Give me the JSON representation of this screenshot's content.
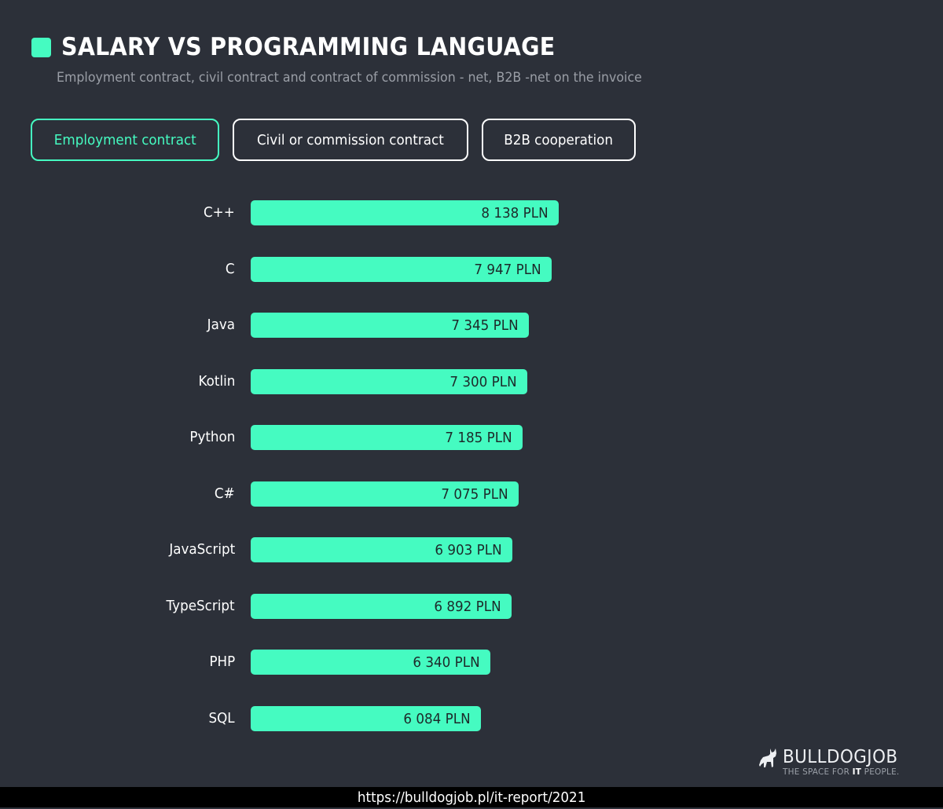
{
  "header": {
    "title": "SALARY VS PROGRAMMING LANGUAGE",
    "subtitle": "Employment contract, civil contract and contract of commission - net, B2B -net on the invoice",
    "accent_color": "#45fbc1"
  },
  "tabs": [
    {
      "label": "Employment contract",
      "active": true
    },
    {
      "label": "Civil or commission contract",
      "active": false
    },
    {
      "label": "B2B cooperation",
      "active": false
    }
  ],
  "chart_data": {
    "type": "bar",
    "orientation": "horizontal",
    "title": "SALARY VS PROGRAMMING LANGUAGE",
    "subtitle": "Employment contract, civil contract and contract of commission - net, B2B -net on the invoice",
    "xlabel": "",
    "ylabel": "",
    "unit": "PLN",
    "grid": false,
    "legend": null,
    "bar_color": "#45fbc1",
    "categories": [
      "C++",
      "C",
      "Java",
      "Kotlin",
      "Python",
      "C#",
      "JavaScript",
      "TypeScript",
      "PHP",
      "SQL"
    ],
    "values": [
      8138,
      7947,
      7345,
      7300,
      7185,
      7075,
      6903,
      6892,
      6340,
      6084
    ],
    "value_labels": [
      "8 138 PLN",
      "7 947 PLN",
      "7 345 PLN",
      "7 300 PLN",
      "7 185 PLN",
      "7 075 PLN",
      "6 903 PLN",
      "6 892 PLN",
      "6 340 PLN",
      "6 084 PLN"
    ]
  },
  "logo": {
    "name": "BULLDOGJOB",
    "tagline_pre": "THE SPACE FOR ",
    "tagline_bold": "IT",
    "tagline_post": " PEOPLE."
  },
  "footer": {
    "url": "https://bulldogjob.pl/it-report/2021"
  }
}
